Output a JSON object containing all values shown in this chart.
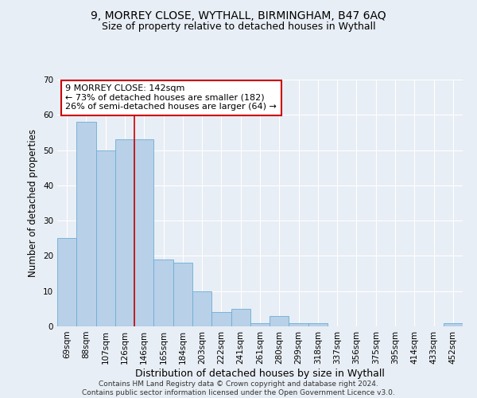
{
  "title1": "9, MORREY CLOSE, WYTHALL, BIRMINGHAM, B47 6AQ",
  "title2": "Size of property relative to detached houses in Wythall",
  "xlabel": "Distribution of detached houses by size in Wythall",
  "ylabel": "Number of detached properties",
  "categories": [
    "69sqm",
    "88sqm",
    "107sqm",
    "126sqm",
    "146sqm",
    "165sqm",
    "184sqm",
    "203sqm",
    "222sqm",
    "241sqm",
    "261sqm",
    "280sqm",
    "299sqm",
    "318sqm",
    "337sqm",
    "356sqm",
    "375sqm",
    "395sqm",
    "414sqm",
    "433sqm",
    "452sqm"
  ],
  "values": [
    25,
    58,
    50,
    53,
    53,
    19,
    18,
    10,
    4,
    5,
    1,
    3,
    1,
    1,
    0,
    0,
    0,
    0,
    0,
    0,
    1
  ],
  "bar_color": "#b8d0e8",
  "bar_edge_color": "#6baed6",
  "vline_color": "#cc0000",
  "annotation_text": "9 MORREY CLOSE: 142sqm\n← 73% of detached houses are smaller (182)\n26% of semi-detached houses are larger (64) →",
  "annotation_box_color": "#ffffff",
  "annotation_box_edge": "#cc0000",
  "ylim": [
    0,
    70
  ],
  "yticks": [
    0,
    10,
    20,
    30,
    40,
    50,
    60,
    70
  ],
  "footer": "Contains HM Land Registry data © Crown copyright and database right 2024.\nContains public sector information licensed under the Open Government Licence v3.0.",
  "bg_color": "#e8eef5",
  "plot_bg_color": "#e8eef5",
  "grid_color": "#ffffff",
  "title1_fontsize": 10,
  "title2_fontsize": 9,
  "xlabel_fontsize": 9,
  "ylabel_fontsize": 8.5,
  "tick_fontsize": 7.5,
  "footer_fontsize": 6.5,
  "ann_fontsize": 8
}
